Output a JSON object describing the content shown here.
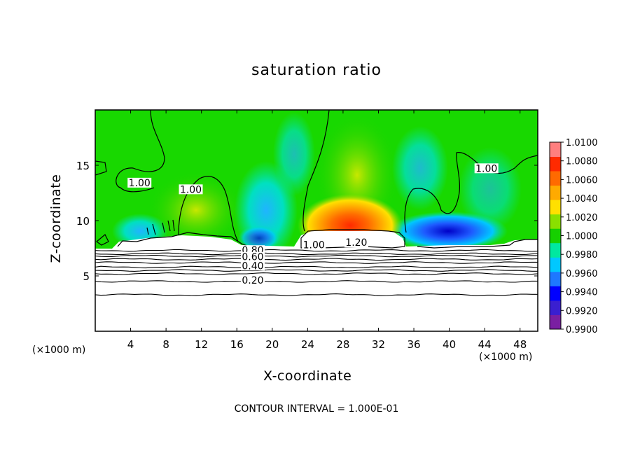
{
  "chart_data": {
    "type": "heatmap",
    "title": "saturation ratio",
    "xlabel": "X-coordinate",
    "ylabel": "Z-coordinate",
    "x_unit_label": "(×1000 m)",
    "footer": "CONTOUR INTERVAL = 1.000E-01",
    "xlim": [
      0,
      50
    ],
    "ylim": [
      0,
      20
    ],
    "x_ticks": [
      4,
      8,
      12,
      16,
      20,
      24,
      28,
      32,
      36,
      40,
      44,
      48
    ],
    "y_ticks": [
      5,
      10,
      15
    ],
    "colorbar": {
      "min": 0.99,
      "max": 1.01,
      "ticks": [
        "1.0100",
        "1.0080",
        "1.0060",
        "1.0040",
        "1.0020",
        "1.0000",
        "0.9980",
        "0.9960",
        "0.9940",
        "0.9920",
        "0.9900"
      ],
      "colors": [
        "#7a1fa2",
        "#3a1fd0",
        "#0000ff",
        "#1e78ff",
        "#00c8ff",
        "#00e8a0",
        "#16d000",
        "#8ae000",
        "#ffe000",
        "#ffaa00",
        "#ff6a00",
        "#ff2a00",
        "#ff7f7f"
      ]
    },
    "contour_labels": [
      {
        "text": "1.00",
        "x": 5.0,
        "y": 13.3
      },
      {
        "text": "1.00",
        "x": 10.8,
        "y": 12.7
      },
      {
        "text": "1.00",
        "x": 44.2,
        "y": 14.6
      },
      {
        "text": "1.00",
        "x": 24.7,
        "y": 7.7
      },
      {
        "text": "1.20",
        "x": 29.5,
        "y": 7.9
      },
      {
        "text": "0.80",
        "x": 17.8,
        "y": 7.2
      },
      {
        "text": "0.60",
        "x": 17.8,
        "y": 6.6
      },
      {
        "text": "0.40",
        "x": 17.8,
        "y": 5.8
      },
      {
        "text": "0.20",
        "x": 17.8,
        "y": 4.5
      }
    ],
    "layer_contours_z": [
      7.3,
      7.0,
      6.8,
      6.5,
      6.2,
      5.8,
      5.5,
      5.2,
      4.5,
      3.3
    ],
    "cloud_top_z": 7.5,
    "cloud_top_contour_z": 9.0,
    "max_supersaturation": {
      "value": 1.007,
      "x": 27.5,
      "z": 10.0
    },
    "min_saturation": {
      "value": 0.992,
      "x": 40.0,
      "z": 8.5
    }
  }
}
